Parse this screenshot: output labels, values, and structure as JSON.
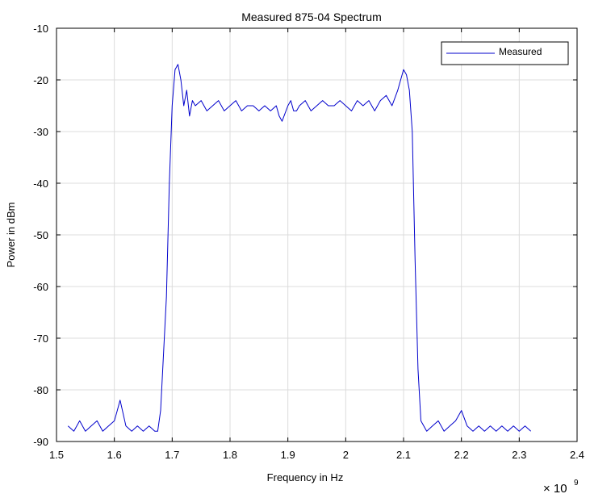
{
  "chart_data": {
    "type": "line",
    "title": "Measured 875-04 Spectrum",
    "xlabel": "Frequency in Hz",
    "ylabel": "Power in dBm",
    "x_exponent_label": "× 10",
    "x_exponent": "9",
    "xlim": [
      1.5,
      2.4
    ],
    "ylim": [
      -90,
      -10
    ],
    "xticks": [
      1.5,
      1.6,
      1.7,
      1.8,
      1.9,
      2.0,
      2.1,
      2.2,
      2.3,
      2.4
    ],
    "xtick_labels": [
      "1.5",
      "1.6",
      "1.7",
      "1.8",
      "1.9",
      "2",
      "2.1",
      "2.2",
      "2.3",
      "2.4"
    ],
    "yticks": [
      -10,
      -20,
      -30,
      -40,
      -50,
      -60,
      -70,
      -80,
      -90
    ],
    "ytick_labels": [
      "-10",
      "-20",
      "-30",
      "-40",
      "-50",
      "-60",
      "-70",
      "-80",
      "-90"
    ],
    "grid": true,
    "legend_position": "top-right",
    "series": [
      {
        "name": "Measured",
        "color": "#0000cc",
        "x": [
          1.52,
          1.53,
          1.54,
          1.55,
          1.56,
          1.57,
          1.58,
          1.59,
          1.6,
          1.605,
          1.61,
          1.62,
          1.63,
          1.64,
          1.65,
          1.66,
          1.67,
          1.675,
          1.68,
          1.69,
          1.695,
          1.7,
          1.705,
          1.71,
          1.715,
          1.72,
          1.725,
          1.73,
          1.735,
          1.74,
          1.75,
          1.76,
          1.77,
          1.78,
          1.79,
          1.8,
          1.81,
          1.82,
          1.83,
          1.84,
          1.85,
          1.86,
          1.87,
          1.88,
          1.885,
          1.89,
          1.9,
          1.905,
          1.91,
          1.915,
          1.92,
          1.93,
          1.94,
          1.95,
          1.96,
          1.97,
          1.98,
          1.99,
          2.0,
          2.01,
          2.02,
          2.03,
          2.04,
          2.05,
          2.06,
          2.07,
          2.08,
          2.09,
          2.095,
          2.1,
          2.105,
          2.11,
          2.115,
          2.12,
          2.125,
          2.13,
          2.14,
          2.15,
          2.16,
          2.17,
          2.18,
          2.19,
          2.2,
          2.21,
          2.22,
          2.23,
          2.24,
          2.25,
          2.26,
          2.27,
          2.28,
          2.29,
          2.3,
          2.31,
          2.32
        ],
        "y": [
          -87,
          -88,
          -86,
          -88,
          -87,
          -86,
          -88,
          -87,
          -86,
          -84,
          -82,
          -87,
          -88,
          -87,
          -88,
          -87,
          -88,
          -88,
          -84,
          -62,
          -40,
          -25,
          -18,
          -17,
          -20,
          -25,
          -22,
          -27,
          -24,
          -25,
          -24,
          -26,
          -25,
          -24,
          -26,
          -25,
          -24,
          -26,
          -25,
          -25,
          -26,
          -25,
          -26,
          -25,
          -27,
          -28,
          -25,
          -24,
          -26,
          -26,
          -25,
          -24,
          -26,
          -25,
          -24,
          -25,
          -25,
          -24,
          -25,
          -26,
          -24,
          -25,
          -24,
          -26,
          -24,
          -23,
          -25,
          -22,
          -20,
          -18,
          -19,
          -22,
          -30,
          -55,
          -76,
          -86,
          -88,
          -87,
          -86,
          -88,
          -87,
          -86,
          -84,
          -87,
          -88,
          -87,
          -88,
          -87,
          -88,
          -87,
          -88,
          -87,
          -88,
          -87,
          -88
        ]
      }
    ]
  }
}
